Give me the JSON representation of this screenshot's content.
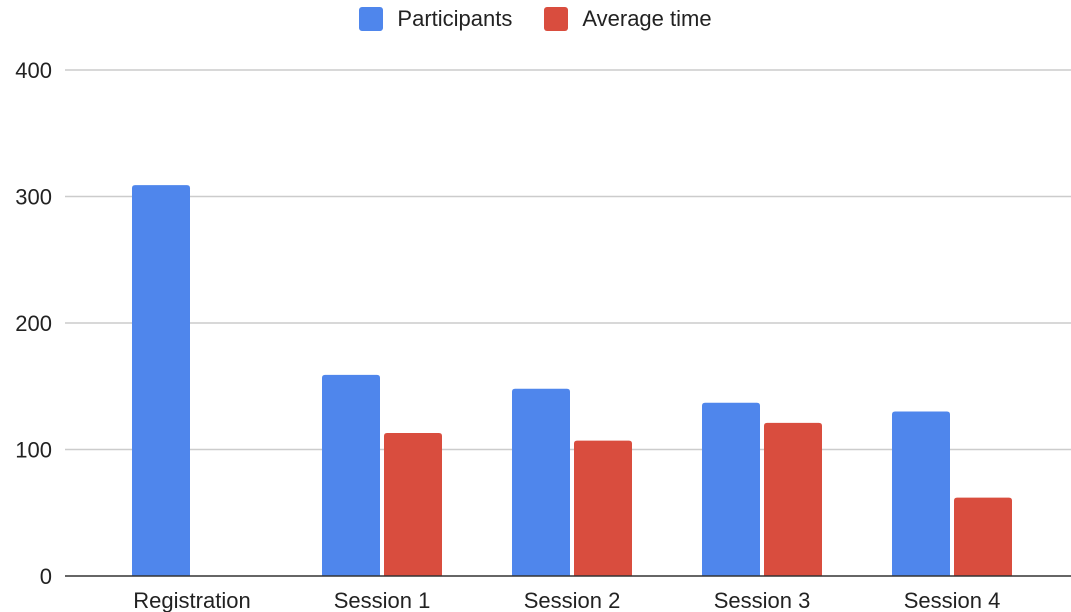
{
  "chart_data": {
    "type": "bar",
    "title": "",
    "xlabel": "",
    "ylabel": "",
    "ylim": [
      0,
      400
    ],
    "yticks": [
      0,
      100,
      200,
      300,
      400
    ],
    "grid": true,
    "legend_position": "top-center",
    "categories": [
      "Registration",
      "Session 1",
      "Session 2",
      "Session 3",
      "Session 4"
    ],
    "series": [
      {
        "name": "Participants",
        "color": "#4f86ec",
        "values": [
          309,
          159,
          148,
          137,
          130
        ]
      },
      {
        "name": "Average time",
        "color": "#d94d3e",
        "values": [
          null,
          113,
          107,
          121,
          62
        ]
      }
    ]
  }
}
